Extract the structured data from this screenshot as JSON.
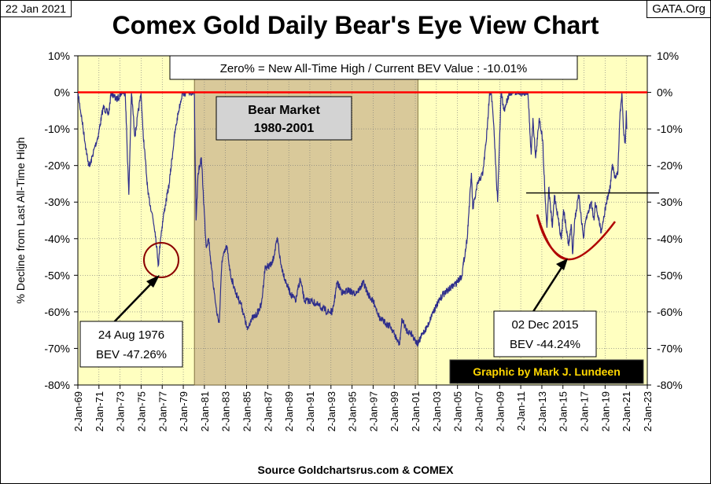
{
  "header": {
    "date": "22 Jan 2021",
    "site": "GATA.Org",
    "title": "Comex Gold Daily Bear's Eye View Chart"
  },
  "footer": {
    "source": "Source Goldchartsrus.com & COMEX"
  },
  "colors": {
    "plot_bg": "#FFFFC0",
    "bear_bg": "#D9C99A",
    "line": "#2E2E8C",
    "ath_line": "#FF0000",
    "annotation_red": "#8B0000",
    "banner_bg": "#000000",
    "banner_text": "#FFD700",
    "label_gray": "#D3D3D3"
  },
  "chart_data": {
    "type": "line",
    "title": "Comex Gold Daily Bear's Eye View Chart",
    "ylabel": "% Decline from Last All-Time High",
    "ylim": [
      -80,
      10
    ],
    "yticks": [
      "10%",
      "0%",
      "-10%",
      "-20%",
      "-30%",
      "-40%",
      "-50%",
      "-60%",
      "-70%",
      "-80%"
    ],
    "xlim": [
      "1969-01-02",
      "2023-01-02"
    ],
    "xticks": [
      "2-Jan-69",
      "2-Jan-71",
      "2-Jan-73",
      "2-Jan-75",
      "2-Jan-77",
      "2-Jan-79",
      "2-Jan-81",
      "2-Jan-83",
      "2-Jan-85",
      "2-Jan-87",
      "2-Jan-89",
      "2-Jan-91",
      "2-Jan-93",
      "2-Jan-95",
      "2-Jan-97",
      "2-Jan-99",
      "2-Jan-01",
      "2-Jan-03",
      "2-Jan-05",
      "2-Jan-07",
      "2-Jan-09",
      "2-Jan-11",
      "2-Jan-13",
      "2-Jan-15",
      "2-Jan-17",
      "2-Jan-19",
      "2-Jan-21",
      "2-Jan-23"
    ],
    "info_box": "Zero% = New All-Time High  / Current BEV Value : -10.01%",
    "bear_market": {
      "label_line1": "Bear Market",
      "label_line2": "1980-2001",
      "start": "1980-01-21",
      "end": "2001-04-02"
    },
    "annotations": [
      {
        "line1": "24 Aug 1976",
        "line2": "BEV -47.26%",
        "date": "1976-08-24",
        "value": -47.26
      },
      {
        "line1": "02 Dec 2015",
        "line2": "BEV -44.24%",
        "date": "2015-12-02",
        "value": -44.24
      }
    ],
    "reference_line_value": -27.5,
    "credit": "Graphic by Mark J. Lundeen",
    "series": [
      {
        "values": [
          [
            "1969-01-02",
            0
          ],
          [
            "1969-06-01",
            -8
          ],
          [
            "1969-12-15",
            -19
          ],
          [
            "1970-03-01",
            -20
          ],
          [
            "1970-06-01",
            -17
          ],
          [
            "1970-12-01",
            -12
          ],
          [
            "1971-06-01",
            -4
          ],
          [
            "1971-12-01",
            -6
          ],
          [
            "1972-03-01",
            0
          ],
          [
            "1972-09-01",
            -2
          ],
          [
            "1973-03-01",
            0
          ],
          [
            "1973-07-01",
            0
          ],
          [
            "1973-11-01",
            -28
          ],
          [
            "1974-02-01",
            0
          ],
          [
            "1974-06-01",
            -12
          ],
          [
            "1974-12-30",
            0
          ],
          [
            "1975-03-01",
            -10
          ],
          [
            "1975-09-01",
            -28
          ],
          [
            "1976-01-15",
            -33
          ],
          [
            "1976-05-01",
            -38
          ],
          [
            "1976-08-24",
            -47.26
          ],
          [
            "1976-11-01",
            -40
          ],
          [
            "1977-03-01",
            -33
          ],
          [
            "1977-09-01",
            -25
          ],
          [
            "1978-03-01",
            -12
          ],
          [
            "1978-07-01",
            -6
          ],
          [
            "1978-12-01",
            0
          ],
          [
            "1979-06-01",
            0
          ],
          [
            "1980-01-21",
            0
          ],
          [
            "1980-02-10",
            -15
          ],
          [
            "1980-03-20",
            -35
          ],
          [
            "1980-06-01",
            -22
          ],
          [
            "1980-09-20",
            -18
          ],
          [
            "1981-03-01",
            -42
          ],
          [
            "1981-06-01",
            -40
          ],
          [
            "1981-09-01",
            -48
          ],
          [
            "1982-03-01",
            -60
          ],
          [
            "1982-06-01",
            -63
          ],
          [
            "1982-09-01",
            -46
          ],
          [
            "1983-02-15",
            -42
          ],
          [
            "1983-07-01",
            -50
          ],
          [
            "1984-01-01",
            -55
          ],
          [
            "1984-07-01",
            -58
          ],
          [
            "1985-02-01",
            -65
          ],
          [
            "1985-06-01",
            -62
          ],
          [
            "1985-12-01",
            -61
          ],
          [
            "1986-06-01",
            -58
          ],
          [
            "1986-10-01",
            -48
          ],
          [
            "1987-06-01",
            -47
          ],
          [
            "1987-12-10",
            -40
          ],
          [
            "1988-04-01",
            -47
          ],
          [
            "1988-10-01",
            -52
          ],
          [
            "1989-03-01",
            -55
          ],
          [
            "1989-09-01",
            -57
          ],
          [
            "1990-02-01",
            -51
          ],
          [
            "1990-07-01",
            -57
          ],
          [
            "1991-03-01",
            -57
          ],
          [
            "1991-09-01",
            -58
          ],
          [
            "1992-03-01",
            -59
          ],
          [
            "1992-09-01",
            -60
          ],
          [
            "1993-03-01",
            -60
          ],
          [
            "1993-08-01",
            -52
          ],
          [
            "1994-03-01",
            -55
          ],
          [
            "1994-09-01",
            -54
          ],
          [
            "1995-03-01",
            -55
          ],
          [
            "1995-09-01",
            -54
          ],
          [
            "1996-02-01",
            -52
          ],
          [
            "1996-07-01",
            -55
          ],
          [
            "1997-03-01",
            -58
          ],
          [
            "1997-09-01",
            -62
          ],
          [
            "1998-03-01",
            -63
          ],
          [
            "1998-09-01",
            -64
          ],
          [
            "1999-07-01",
            -69
          ],
          [
            "1999-10-01",
            -62
          ],
          [
            "2000-03-01",
            -65
          ],
          [
            "2000-09-01",
            -66
          ],
          [
            "2001-04-02",
            -69
          ],
          [
            "2001-09-01",
            -66
          ],
          [
            "2002-03-01",
            -64
          ],
          [
            "2002-09-01",
            -60
          ],
          [
            "2003-02-01",
            -58
          ],
          [
            "2003-09-01",
            -55
          ],
          [
            "2004-03-01",
            -54
          ],
          [
            "2004-12-01",
            -52
          ],
          [
            "2005-06-01",
            -50
          ],
          [
            "2005-12-01",
            -40
          ],
          [
            "2006-05-01",
            -22
          ],
          [
            "2006-06-15",
            -32
          ],
          [
            "2006-12-01",
            -25
          ],
          [
            "2007-06-01",
            -22
          ],
          [
            "2007-11-01",
            -10
          ],
          [
            "2008-01-15",
            0
          ],
          [
            "2008-03-17",
            0
          ],
          [
            "2008-06-01",
            -8
          ],
          [
            "2008-10-24",
            -30
          ],
          [
            "2009-02-20",
            0
          ],
          [
            "2009-06-01",
            -5
          ],
          [
            "2009-12-03",
            0
          ],
          [
            "2010-06-01",
            0
          ],
          [
            "2011-01-01",
            0
          ],
          [
            "2011-09-06",
            0
          ],
          [
            "2011-12-29",
            -17
          ],
          [
            "2012-02-28",
            -7
          ],
          [
            "2012-06-01",
            -18
          ],
          [
            "2012-10-05",
            -7
          ],
          [
            "2013-02-01",
            -13
          ],
          [
            "2013-04-15",
            -27
          ],
          [
            "2013-06-28",
            -37
          ],
          [
            "2013-08-28",
            -26
          ],
          [
            "2013-12-31",
            -37
          ],
          [
            "2014-03-14",
            -28
          ],
          [
            "2014-06-01",
            -32
          ],
          [
            "2014-11-05",
            -40
          ],
          [
            "2015-01-22",
            -32
          ],
          [
            "2015-07-24",
            -42
          ],
          [
            "2015-10-15",
            -36
          ],
          [
            "2015-12-02",
            -44.24
          ],
          [
            "2016-02-11",
            -35
          ],
          [
            "2016-07-06",
            -28
          ],
          [
            "2016-12-15",
            -40
          ],
          [
            "2017-03-01",
            -35
          ],
          [
            "2017-09-08",
            -30
          ],
          [
            "2017-12-12",
            -35
          ],
          [
            "2018-01-25",
            -30
          ],
          [
            "2018-08-16",
            -38
          ],
          [
            "2019-02-20",
            -30
          ],
          [
            "2019-06-25",
            -26
          ],
          [
            "2019-09-04",
            -20
          ],
          [
            "2019-12-01",
            -23
          ],
          [
            "2020-03-20",
            -22
          ],
          [
            "2020-05-18",
            -8
          ],
          [
            "2020-08-06",
            0
          ],
          [
            "2020-09-25",
            -10
          ],
          [
            "2020-11-30",
            -14
          ],
          [
            "2021-01-05",
            -5
          ],
          [
            "2021-01-22",
            -10.01
          ]
        ]
      }
    ]
  }
}
